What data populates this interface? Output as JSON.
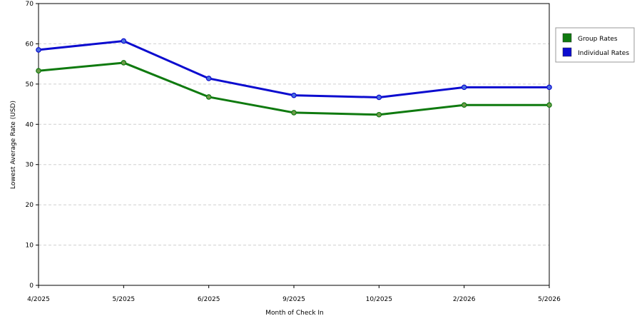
{
  "chart_data": {
    "type": "line",
    "categories": [
      "4/2025",
      "5/2025",
      "6/2025",
      "9/2025",
      "10/2025",
      "2/2026",
      "5/2026"
    ],
    "series": [
      {
        "name": "Group Rates",
        "color": "#0f7a0f",
        "values": [
          53.3,
          55.3,
          46.8,
          42.9,
          42.4,
          44.8,
          44.8
        ]
      },
      {
        "name": "Individual Rates",
        "color": "#0c0ccf",
        "values": [
          58.5,
          60.7,
          51.4,
          47.2,
          46.7,
          49.2,
          49.2
        ]
      }
    ],
    "yticks": [
      0,
      10,
      20,
      30,
      40,
      50,
      60,
      70
    ],
    "ylim": [
      0,
      70
    ],
    "xlabel": "Month of Check In",
    "ylabel": "Lowest Average Rate (USD)",
    "grid": true,
    "legend_position": "top-right"
  }
}
